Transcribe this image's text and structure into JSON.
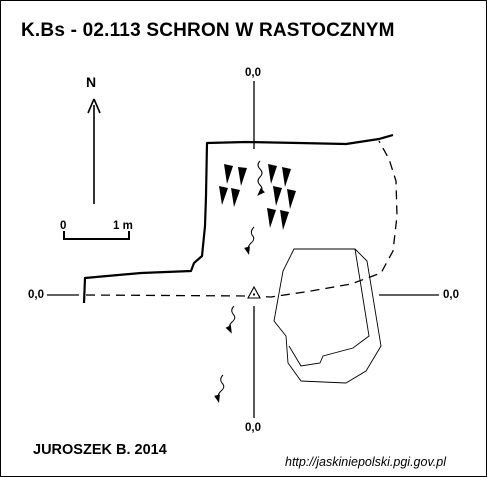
{
  "title": "K.Bs - 02.113  SCHRON W RASTOCZNYM",
  "author": "JUROSZEK B. 2014",
  "url": "http://jaskiniepolski.pgi.gov.pl",
  "north_label": "N",
  "scale": {
    "start": "0",
    "end": "1 m"
  },
  "axes": {
    "top": "0,0",
    "left": "0,0",
    "right": "0,0",
    "bottom": "0,0"
  },
  "colors": {
    "ink": "#000000",
    "background": "#ffffff"
  }
}
